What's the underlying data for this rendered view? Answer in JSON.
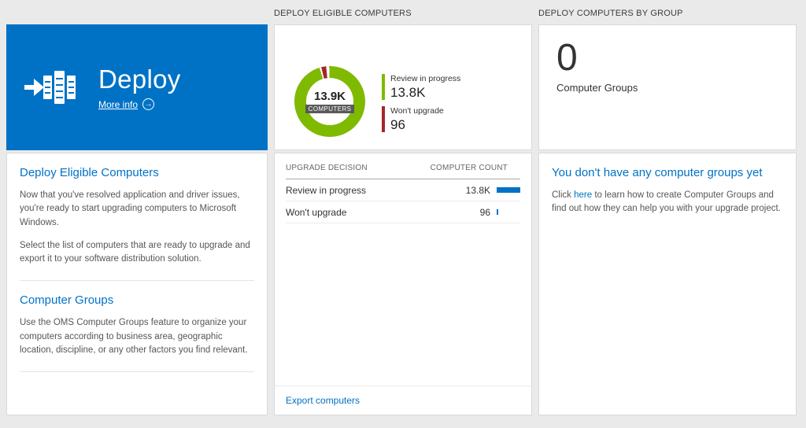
{
  "colors": {
    "accent_blue": "#0072c6",
    "green": "#7fba00",
    "red": "#a4262c",
    "bar_blue": "#0072c6",
    "background": "#eaeaea"
  },
  "left_column": {
    "tile": {
      "title": "Deploy",
      "more_info_label": "More info"
    },
    "sections": [
      {
        "heading": "Deploy Eligible Computers",
        "paragraphs": [
          "Now that you've resolved application and driver issues, you're ready to start upgrading computers to Microsoft Windows.",
          "Select the list of computers that are ready to upgrade and export it to your software distribution solution."
        ]
      },
      {
        "heading": "Computer Groups",
        "paragraphs": [
          "Use the OMS Computer Groups feature to organize your computers according to business area, geographic location, discipline, or any other factors you find relevant."
        ]
      }
    ]
  },
  "middle_column": {
    "header": "DEPLOY ELIGIBLE COMPUTERS",
    "donut": {
      "center_value": "13.9K",
      "center_label": "COMPUTERS"
    },
    "legend": [
      {
        "label": "Review in progress",
        "value": "13.8K"
      },
      {
        "label": "Won't upgrade",
        "value": "96"
      }
    ],
    "table": {
      "col_decision": "UPGRADE DECISION",
      "col_count": "COMPUTER COUNT",
      "rows": [
        {
          "label": "Review in progress",
          "count": "13.8K",
          "bar_pct": 100
        },
        {
          "label": "Won't upgrade",
          "count": "96",
          "bar_pct": 6
        }
      ]
    },
    "export_label": "Export computers"
  },
  "right_column": {
    "header": "DEPLOY COMPUTERS BY GROUP",
    "tile": {
      "value": "0",
      "label": "Computer Groups"
    },
    "empty_state": {
      "heading": "You don't have any computer groups yet",
      "text_before_link": "Click ",
      "link_text": "here",
      "text_after_link": " to learn how to create Computer Groups and find out how they can help you with your upgrade project."
    }
  },
  "chart_data": {
    "type": "pie",
    "title": "Deploy Eligible Computers",
    "center_value": "13.9K",
    "center_label": "COMPUTERS",
    "slices": [
      {
        "label": "Review in progress",
        "value": 13800,
        "display": "13.8K",
        "color": "#7fba00"
      },
      {
        "label": "Won't upgrade",
        "value": 96,
        "display": "96",
        "color": "#a4262c"
      }
    ],
    "legend_position": "right"
  }
}
